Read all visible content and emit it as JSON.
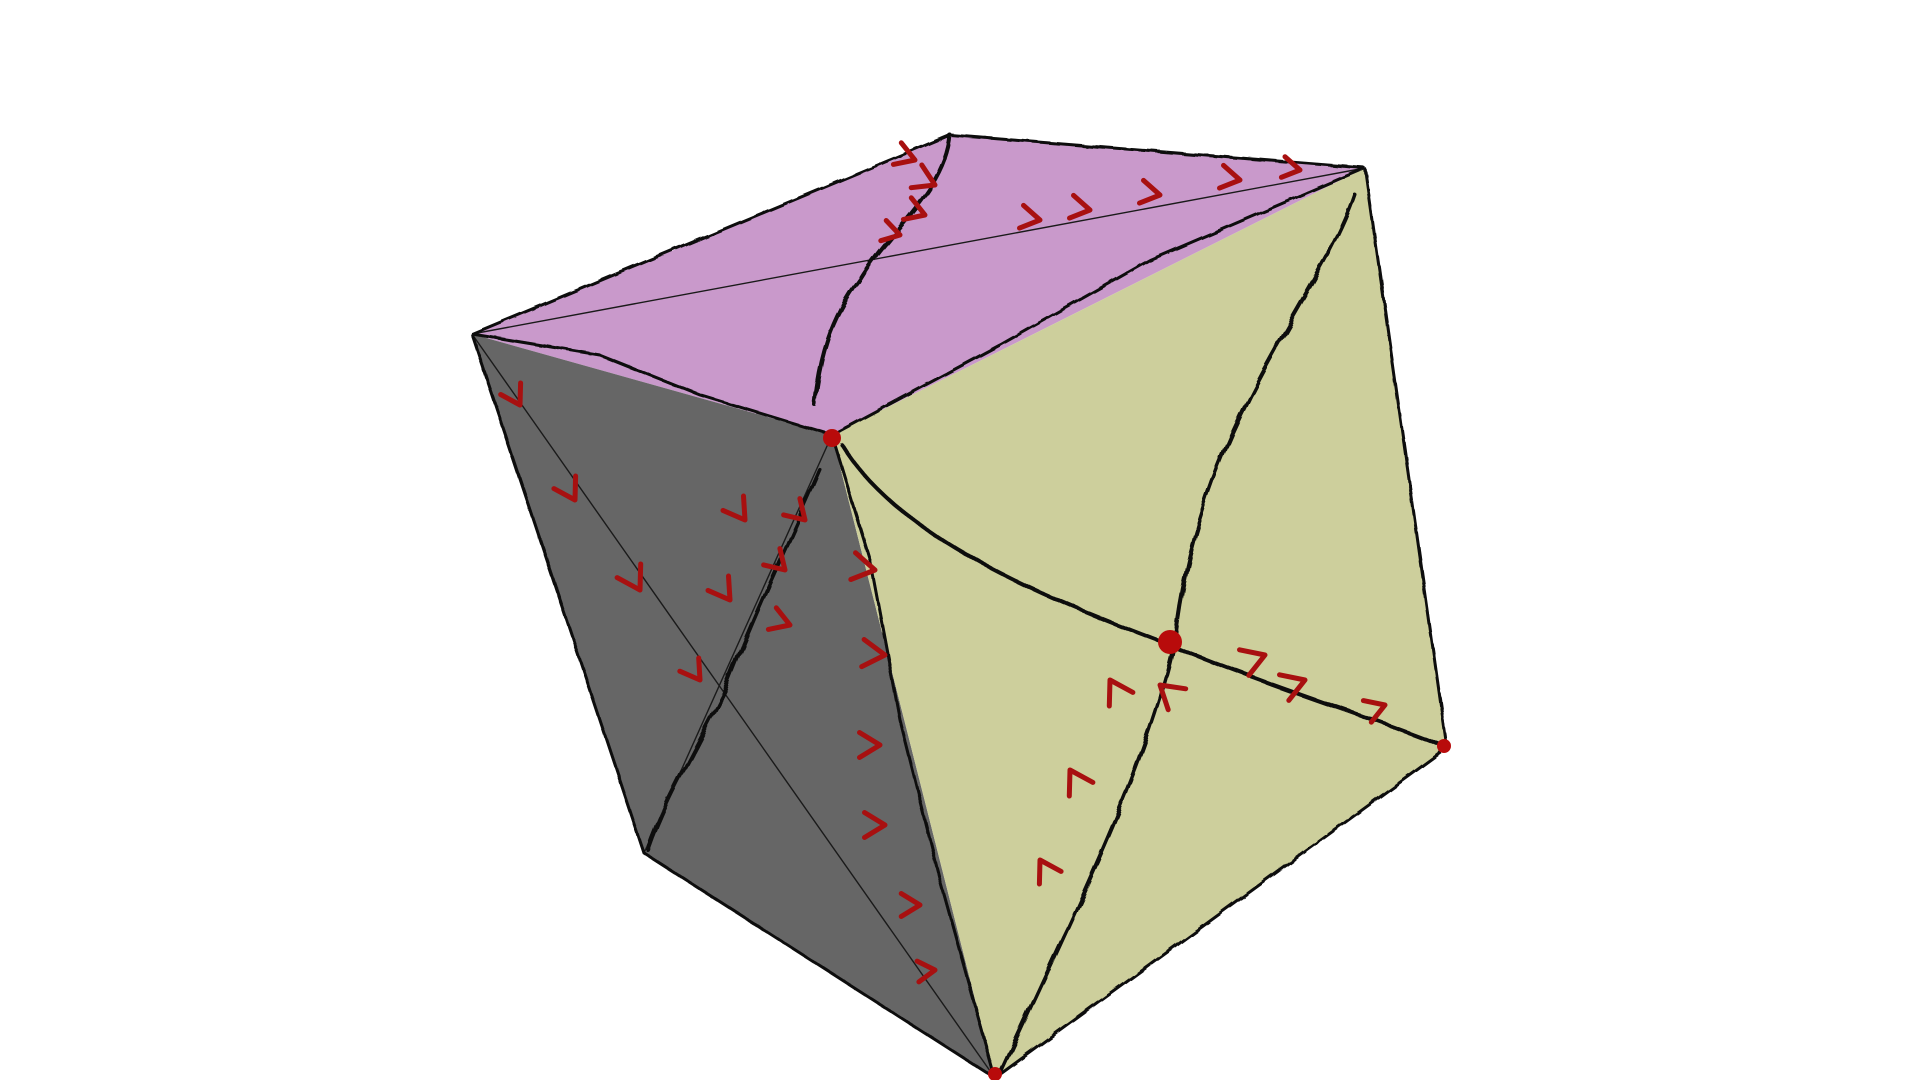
{
  "figure": {
    "colors": {
      "background": "#ffffff",
      "top_face": "#c999cb",
      "left_face": "#666666",
      "right_face": "#cdcf9c",
      "edge": "#0a0a0a",
      "arrow": "#a81010",
      "node": "#b80b0b"
    },
    "faces": [
      "top-face",
      "left-face",
      "right-face"
    ]
  }
}
